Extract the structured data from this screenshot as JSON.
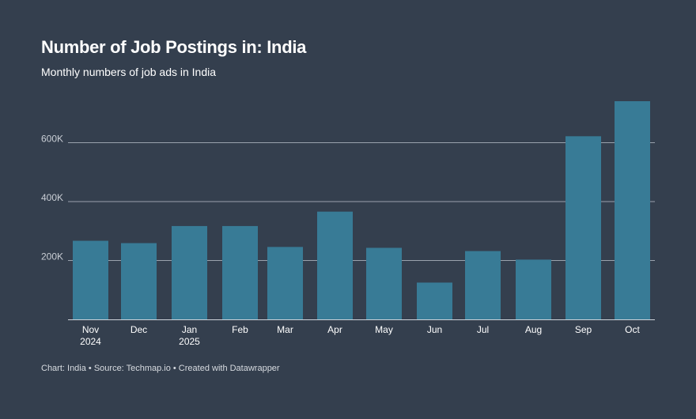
{
  "header": {
    "title": "Number of Job Postings in: India",
    "subtitle": "Monthly numbers of job ads in India"
  },
  "footer": {
    "text": "Chart: India • Source: Techmap.io • Created with Datawrapper"
  },
  "colors": {
    "background": "#343f4e",
    "bar": "#387b96",
    "grid": "#9aa2ad",
    "axis": "#cfd4da"
  },
  "chart_data": {
    "type": "bar",
    "title": "Number of Job Postings in: India",
    "subtitle": "Monthly numbers of job ads in India",
    "categories": [
      "Nov 2024",
      "Dec",
      "Jan 2025",
      "Feb",
      "Mar",
      "Apr",
      "May",
      "Jun",
      "Jul",
      "Aug",
      "Sep",
      "Oct"
    ],
    "category_lines": [
      [
        "Nov",
        "2024"
      ],
      [
        "Dec"
      ],
      [
        "Jan",
        "2025"
      ],
      [
        "Feb"
      ],
      [
        "Mar"
      ],
      [
        "Apr"
      ],
      [
        "May"
      ],
      [
        "Jun"
      ],
      [
        "Jul"
      ],
      [
        "Aug"
      ],
      [
        "Sep"
      ],
      [
        "Oct"
      ]
    ],
    "values": [
      267000,
      259000,
      317000,
      317000,
      246000,
      366000,
      243000,
      125000,
      232000,
      203000,
      622000,
      741000
    ],
    "ylim": [
      0,
      741000
    ],
    "yticks": [
      200000,
      400000,
      600000
    ],
    "ytick_labels": [
      "200K",
      "400K",
      "600K"
    ],
    "xlabel": "",
    "ylabel": "",
    "grid": true
  }
}
